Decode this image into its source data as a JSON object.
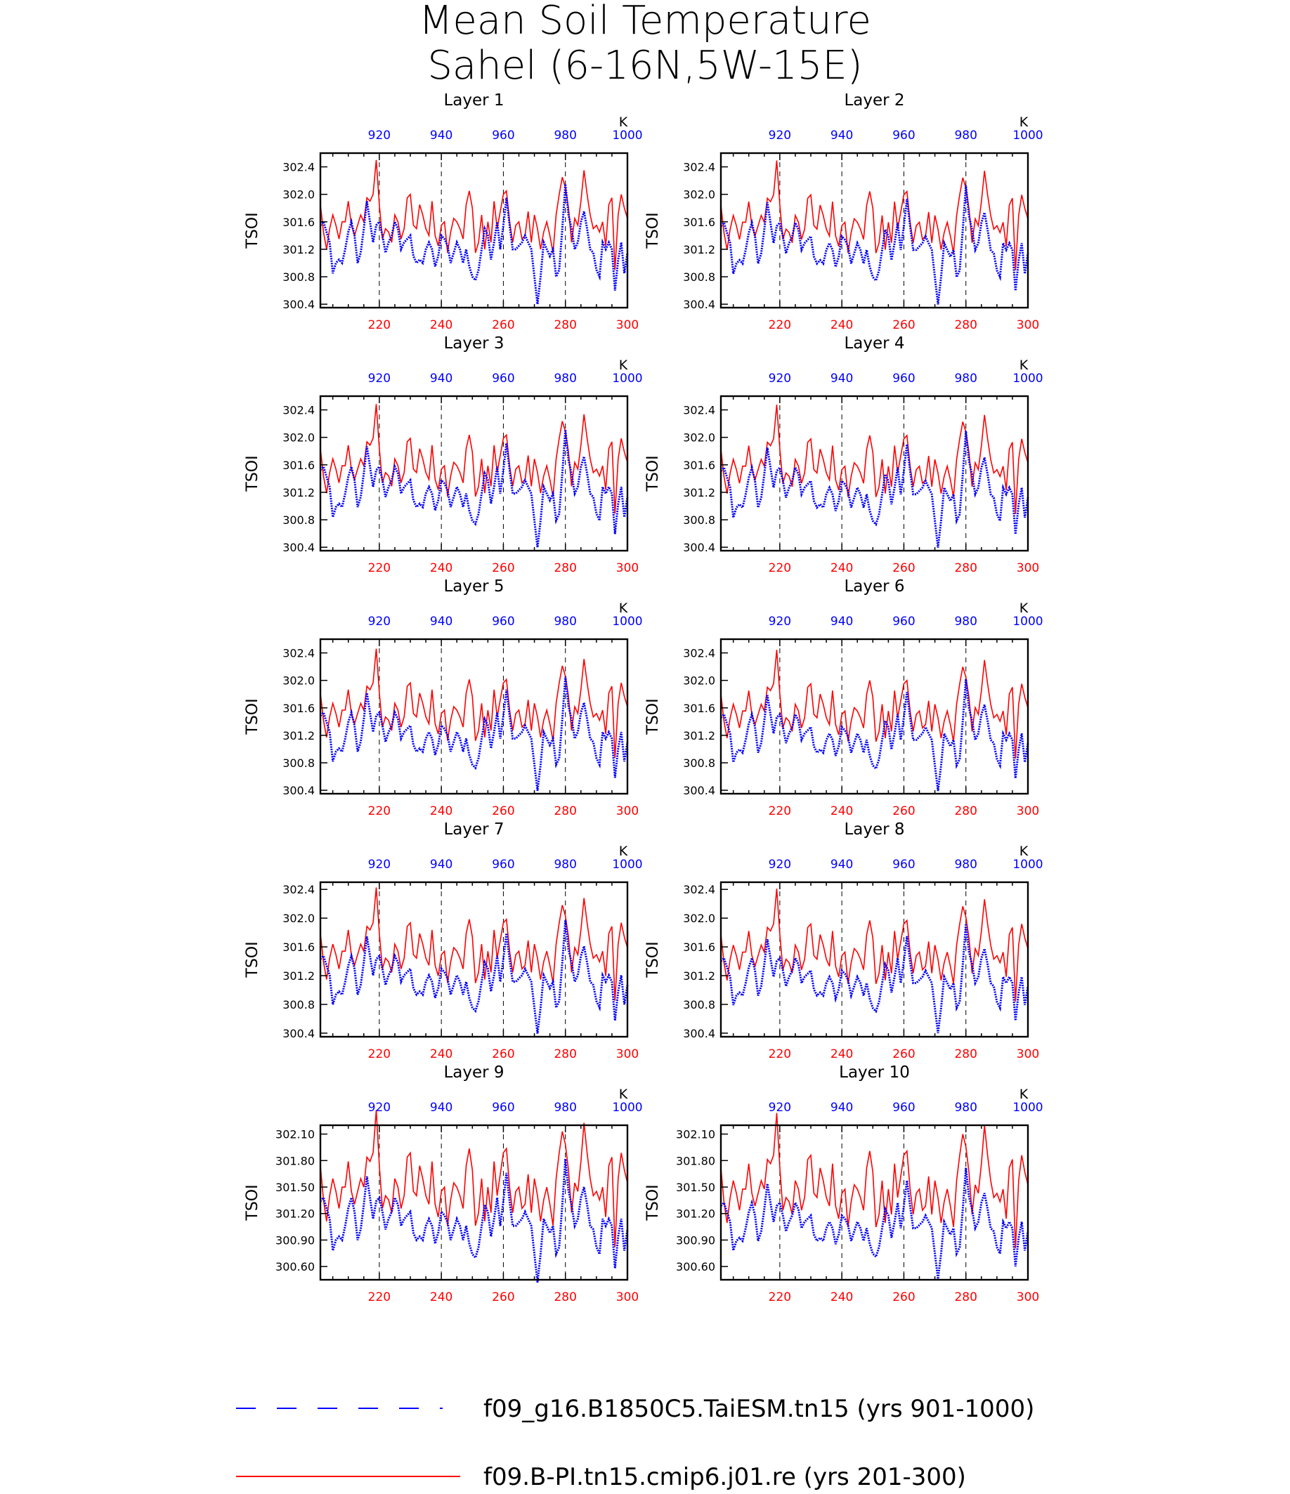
{
  "title_line1": "Mean Soil Temperature",
  "title_line2": "Sahel (6-16N,5W-15E)",
  "colors": {
    "control": "#0000ff",
    "reference": "#ff0000",
    "axis": "#000000"
  },
  "legend": {
    "control_label": "f09_g16.B1850C5.TaiESM.tn15 (yrs 901-1000)",
    "reference_label": "f09.B-PI.tn15.cmip6.j01.re (yrs 201-300)"
  },
  "chart_data": [
    {
      "panel": "Layer 1",
      "type": "line",
      "ylabel": "TSOI",
      "unit": "K",
      "ylim": [
        300.35,
        302.6
      ],
      "yticks": [
        "300.4",
        "300.8",
        "301.2",
        "301.6",
        "302.0",
        "302.4"
      ],
      "x_bottom": {
        "range": [
          201,
          300
        ],
        "ticks": [
          "220",
          "240",
          "260",
          "280",
          "300"
        ],
        "color": "#ff0000"
      },
      "x_top": {
        "range": [
          901,
          1000
        ],
        "ticks": [
          "920",
          "940",
          "960",
          "980",
          "1000"
        ],
        "color": "#0000ff"
      },
      "series_offset": 0.0,
      "series_scale": 1.0
    },
    {
      "panel": "Layer 2",
      "type": "line",
      "ylabel": "TSOI",
      "unit": "K",
      "ylim": [
        300.35,
        302.6
      ],
      "yticks": [
        "300.4",
        "300.8",
        "301.2",
        "301.6",
        "302.0",
        "302.4"
      ],
      "x_bottom": {
        "range": [
          201,
          300
        ],
        "ticks": [
          "220",
          "240",
          "260",
          "280",
          "300"
        ],
        "color": "#ff0000"
      },
      "x_top": {
        "range": [
          901,
          1000
        ],
        "ticks": [
          "920",
          "940",
          "960",
          "980",
          "1000"
        ],
        "color": "#0000ff"
      },
      "series_offset": -0.01,
      "series_scale": 0.99
    },
    {
      "panel": "Layer 3",
      "type": "line",
      "ylabel": "TSOI",
      "unit": "K",
      "ylim": [
        300.35,
        302.6
      ],
      "yticks": [
        "300.4",
        "300.8",
        "301.2",
        "301.6",
        "302.0",
        "302.4"
      ],
      "x_bottom": {
        "range": [
          201,
          300
        ],
        "ticks": [
          "220",
          "240",
          "260",
          "280",
          "300"
        ],
        "color": "#ff0000"
      },
      "x_top": {
        "range": [
          901,
          1000
        ],
        "ticks": [
          "920",
          "940",
          "960",
          "980",
          "1000"
        ],
        "color": "#0000ff"
      },
      "series_offset": -0.02,
      "series_scale": 0.98
    },
    {
      "panel": "Layer 4",
      "type": "line",
      "ylabel": "TSOI",
      "unit": "K",
      "ylim": [
        300.35,
        302.6
      ],
      "yticks": [
        "300.4",
        "300.8",
        "301.2",
        "301.6",
        "302.0",
        "302.4"
      ],
      "x_bottom": {
        "range": [
          201,
          300
        ],
        "ticks": [
          "220",
          "240",
          "260",
          "280",
          "300"
        ],
        "color": "#ff0000"
      },
      "x_top": {
        "range": [
          901,
          1000
        ],
        "ticks": [
          "920",
          "940",
          "960",
          "980",
          "1000"
        ],
        "color": "#0000ff"
      },
      "series_offset": -0.03,
      "series_scale": 0.97
    },
    {
      "panel": "Layer 5",
      "type": "line",
      "ylabel": "TSOI",
      "unit": "K",
      "ylim": [
        300.35,
        302.6
      ],
      "yticks": [
        "300.4",
        "300.8",
        "301.2",
        "301.6",
        "302.0",
        "302.4"
      ],
      "x_bottom": {
        "range": [
          201,
          300
        ],
        "ticks": [
          "220",
          "240",
          "260",
          "280",
          "300"
        ],
        "color": "#ff0000"
      },
      "x_top": {
        "range": [
          901,
          1000
        ],
        "ticks": [
          "920",
          "940",
          "960",
          "980",
          "1000"
        ],
        "color": "#0000ff"
      },
      "series_offset": -0.05,
      "series_scale": 0.95
    },
    {
      "panel": "Layer 6",
      "type": "line",
      "ylabel": "TSOI",
      "unit": "K",
      "ylim": [
        300.35,
        302.6
      ],
      "yticks": [
        "300.4",
        "300.8",
        "301.2",
        "301.6",
        "302.0",
        "302.4"
      ],
      "x_bottom": {
        "range": [
          201,
          300
        ],
        "ticks": [
          "220",
          "240",
          "260",
          "280",
          "300"
        ],
        "color": "#ff0000"
      },
      "x_top": {
        "range": [
          901,
          1000
        ],
        "ticks": [
          "920",
          "940",
          "960",
          "980",
          "1000"
        ],
        "color": "#0000ff"
      },
      "series_offset": -0.07,
      "series_scale": 0.93
    },
    {
      "panel": "Layer 7",
      "type": "line",
      "ylabel": "TSOI",
      "unit": "K",
      "ylim": [
        300.35,
        302.5
      ],
      "yticks": [
        "300.4",
        "300.8",
        "301.2",
        "301.6",
        "302.0",
        "302.4"
      ],
      "x_bottom": {
        "range": [
          201,
          300
        ],
        "ticks": [
          "220",
          "240",
          "260",
          "280",
          "300"
        ],
        "color": "#ff0000"
      },
      "x_top": {
        "range": [
          901,
          1000
        ],
        "ticks": [
          "920",
          "940",
          "960",
          "980",
          "1000"
        ],
        "color": "#0000ff"
      },
      "series_offset": -0.09,
      "series_scale": 0.9
    },
    {
      "panel": "Layer 8",
      "type": "line",
      "ylabel": "TSOI",
      "unit": "K",
      "ylim": [
        300.35,
        302.5
      ],
      "yticks": [
        "300.4",
        "300.8",
        "301.2",
        "301.6",
        "302.0",
        "302.4"
      ],
      "x_bottom": {
        "range": [
          201,
          300
        ],
        "ticks": [
          "220",
          "240",
          "260",
          "280",
          "300"
        ],
        "color": "#ff0000"
      },
      "x_top": {
        "range": [
          901,
          1000
        ],
        "ticks": [
          "920",
          "940",
          "960",
          "980",
          "1000"
        ],
        "color": "#0000ff"
      },
      "series_offset": -0.11,
      "series_scale": 0.87
    },
    {
      "panel": "Layer 9",
      "type": "line",
      "ylabel": "TSOI",
      "unit": "K",
      "ylim": [
        300.45,
        302.2
      ],
      "yticks": [
        "300.60",
        "300.90",
        "301.20",
        "301.50",
        "301.80",
        "302.10"
      ],
      "x_bottom": {
        "range": [
          201,
          300
        ],
        "ticks": [
          "220",
          "240",
          "260",
          "280",
          "300"
        ],
        "color": "#ff0000"
      },
      "x_top": {
        "range": [
          901,
          1000
        ],
        "ticks": [
          "920",
          "940",
          "960",
          "980",
          "1000"
        ],
        "color": "#0000ff"
      },
      "series_offset": -0.15,
      "series_scale": 0.8
    },
    {
      "panel": "Layer 10",
      "type": "line",
      "ylabel": "TSOI",
      "unit": "K",
      "ylim": [
        300.45,
        302.2
      ],
      "yticks": [
        "300.60",
        "300.90",
        "301.20",
        "301.50",
        "301.80",
        "302.10"
      ],
      "x_bottom": {
        "range": [
          201,
          300
        ],
        "ticks": [
          "220",
          "240",
          "260",
          "280",
          "300"
        ],
        "color": "#ff0000"
      },
      "x_top": {
        "range": [
          901,
          1000
        ],
        "ticks": [
          "920",
          "940",
          "960",
          "980",
          "1000"
        ],
        "color": "#0000ff"
      },
      "series_offset": -0.18,
      "series_scale": 0.72
    }
  ],
  "base_series": {
    "control": [
      301.55,
      301.6,
      301.45,
      301.3,
      300.85,
      301.0,
      301.05,
      301.0,
      301.2,
      301.45,
      301.6,
      301.4,
      301.0,
      301.15,
      301.5,
      301.9,
      301.6,
      301.3,
      301.55,
      301.6,
      301.4,
      301.15,
      301.3,
      301.4,
      301.6,
      301.5,
      301.2,
      301.3,
      301.35,
      301.4,
      301.1,
      301.0,
      301.05,
      301.0,
      301.2,
      301.3,
      301.2,
      300.95,
      301.1,
      301.4,
      301.35,
      301.25,
      301.0,
      301.15,
      301.3,
      301.2,
      301.0,
      301.2,
      300.95,
      300.8,
      300.75,
      300.9,
      301.2,
      301.5,
      301.4,
      301.05,
      301.3,
      301.6,
      301.2,
      301.55,
      301.95,
      301.55,
      301.2,
      301.2,
      301.25,
      301.3,
      301.4,
      301.3,
      301.2,
      300.8,
      300.4,
      300.8,
      301.3,
      301.2,
      301.1,
      301.2,
      300.8,
      300.9,
      301.5,
      302.15,
      301.7,
      301.5,
      301.2,
      301.3,
      301.6,
      301.75,
      301.5,
      301.2,
      301.15,
      300.9,
      300.8,
      301.3,
      301.2,
      301.3,
      301.2,
      300.6,
      301.05,
      301.3,
      300.85,
      301.15
    ],
    "reference": [
      301.85,
      301.45,
      301.2,
      301.5,
      301.7,
      301.55,
      301.35,
      301.6,
      301.6,
      301.9,
      301.55,
      301.4,
      301.55,
      301.7,
      301.6,
      301.95,
      301.9,
      302.0,
      302.5,
      301.85,
      301.35,
      301.5,
      301.45,
      301.3,
      301.7,
      301.6,
      301.35,
      301.5,
      301.95,
      302.0,
      301.55,
      301.5,
      301.85,
      301.7,
      301.5,
      301.4,
      301.9,
      301.4,
      301.25,
      301.55,
      301.6,
      301.15,
      301.45,
      301.65,
      301.6,
      301.5,
      301.35,
      301.85,
      302.05,
      301.8,
      301.15,
      301.3,
      301.7,
      301.2,
      301.6,
      301.3,
      301.9,
      301.5,
      301.75,
      302.0,
      302.05,
      301.6,
      301.3,
      301.55,
      301.6,
      301.35,
      301.4,
      301.75,
      301.3,
      301.7,
      301.5,
      301.2,
      301.45,
      301.6,
      301.4,
      301.15,
      301.7,
      302.0,
      302.25,
      302.1,
      301.8,
      301.3,
      301.65,
      301.55,
      301.9,
      302.35,
      302.0,
      301.7,
      301.5,
      301.55,
      301.45,
      301.6,
      301.25,
      301.85,
      301.95,
      300.9,
      301.7,
      302.0,
      301.8,
      301.65
    ]
  }
}
